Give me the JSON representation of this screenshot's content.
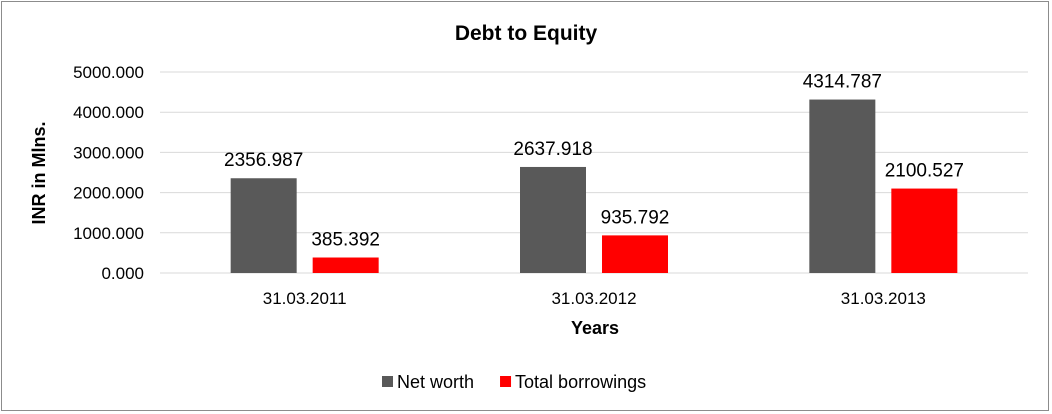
{
  "chart_data": {
    "type": "bar",
    "title": "Debt to Equity",
    "xlabel": "Years",
    "ylabel": "INR in Mlns.",
    "categories": [
      "31.03.2011",
      "31.03.2012",
      "31.03.2013"
    ],
    "series": [
      {
        "name": "Net worth",
        "values": [
          2356.987,
          2637.918,
          4314.787
        ],
        "color": "#595959"
      },
      {
        "name": "Total borrowings",
        "values": [
          385.392,
          935.792,
          2100.527
        ],
        "color": "#ff0000"
      }
    ],
    "data_labels": [
      [
        "2356.987",
        "2637.918",
        "4314.787"
      ],
      [
        "385.392",
        "935.792",
        "2100.527"
      ]
    ],
    "y_ticks": [
      "0.000",
      "1000.000",
      "2000.000",
      "3000.000",
      "4000.000",
      "5000.000"
    ],
    "ylim": [
      0,
      5000
    ],
    "grid": true,
    "legend_position": "bottom"
  }
}
